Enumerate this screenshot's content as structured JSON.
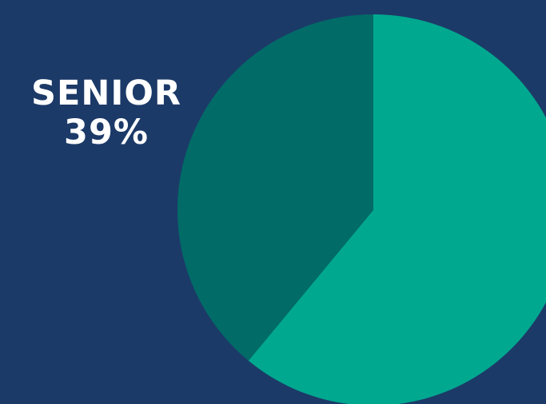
{
  "chart_data": {
    "type": "pie",
    "slices": [
      {
        "label": "SENIOR",
        "value": 39,
        "value_text": "39%",
        "color": "#016b68"
      },
      {
        "label": "",
        "value": 61,
        "color": "#00a88f"
      }
    ],
    "start_angle_deg": 0,
    "direction": "counterclockwise",
    "background": "#1c3a68",
    "legend": "none"
  }
}
